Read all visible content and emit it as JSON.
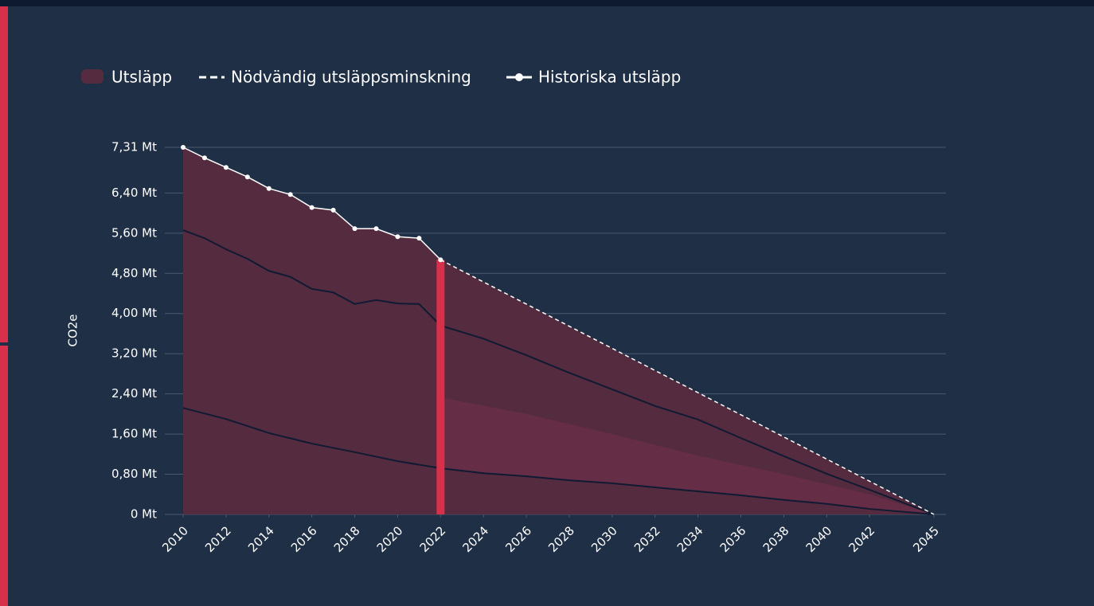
{
  "chart_data": {
    "type": "area",
    "y_label": "CO2e",
    "xlim": [
      2010,
      2045
    ],
    "xticks": [
      2010,
      2012,
      2014,
      2016,
      2018,
      2020,
      2022,
      2024,
      2026,
      2028,
      2030,
      2032,
      2034,
      2036,
      2038,
      2040,
      2042,
      2045
    ],
    "ylim": [
      0,
      7.31
    ],
    "yticks": [
      {
        "value": 0,
        "label": "0 Mt"
      },
      {
        "value": 0.8,
        "label": "0,80 Mt"
      },
      {
        "value": 1.6,
        "label": "1,60 Mt"
      },
      {
        "value": 2.4,
        "label": "2,40 Mt"
      },
      {
        "value": 3.2,
        "label": "3,20 Mt"
      },
      {
        "value": 4.0,
        "label": "4,00 Mt"
      },
      {
        "value": 4.8,
        "label": "4,80 Mt"
      },
      {
        "value": 5.6,
        "label": "5,60 Mt"
      },
      {
        "value": 6.4,
        "label": "6,40 Mt"
      },
      {
        "value": 7.31,
        "label": "7,31 Mt"
      }
    ],
    "grid": true,
    "legend": "top-left",
    "series": [
      {
        "name": "Utsläpp",
        "color": "#542b3f",
        "kind": "area"
      },
      {
        "name": "Nödvändig utsläppsminskning",
        "color": "#ffffff",
        "kind": "dashed",
        "x": [
          2022,
          2045
        ],
        "values": [
          5.07,
          0
        ]
      },
      {
        "name": "Historiska utsläpp",
        "color": "#ffffff",
        "kind": "line-dots",
        "x": [
          2010,
          2011,
          2012,
          2013,
          2014,
          2015,
          2016,
          2017,
          2018,
          2019,
          2020,
          2021,
          2022
        ],
        "values": [
          7.31,
          7.1,
          6.91,
          6.72,
          6.49,
          6.37,
          6.11,
          6.06,
          5.69,
          5.69,
          5.53,
          5.5,
          5.07
        ]
      }
    ],
    "band": {
      "color": "#652e46",
      "x": [
        2022,
        2026,
        2030,
        2034,
        2038,
        2042,
        2045
      ],
      "values": [
        2.33,
        2.0,
        1.6,
        1.17,
        0.8,
        0.4,
        0
      ]
    },
    "layers": [
      {
        "color": "#101a33",
        "x": [
          2010,
          2011,
          2012,
          2013,
          2014,
          2015,
          2016,
          2017,
          2018,
          2019,
          2020,
          2021,
          2022,
          2024,
          2026,
          2028,
          2030,
          2032,
          2034,
          2036,
          2038,
          2040,
          2042,
          2045
        ],
        "values": [
          5.66,
          5.5,
          5.28,
          5.09,
          4.85,
          4.73,
          4.49,
          4.42,
          4.19,
          4.27,
          4.2,
          4.19,
          3.76,
          3.5,
          3.17,
          2.82,
          2.49,
          2.16,
          1.89,
          1.52,
          1.16,
          0.81,
          0.49,
          0
        ]
      },
      {
        "color": "#101a33",
        "x": [
          2010,
          2012,
          2014,
          2016,
          2018,
          2020,
          2022,
          2024,
          2026,
          2028,
          2030,
          2032,
          2034,
          2036,
          2038,
          2040,
          2042,
          2045
        ],
        "values": [
          2.12,
          1.9,
          1.62,
          1.41,
          1.24,
          1.06,
          0.92,
          0.82,
          0.76,
          0.68,
          0.62,
          0.54,
          0.46,
          0.38,
          0.29,
          0.21,
          0.11,
          0
        ]
      }
    ],
    "marker": {
      "x": 2022,
      "color": "#d6304a"
    }
  }
}
